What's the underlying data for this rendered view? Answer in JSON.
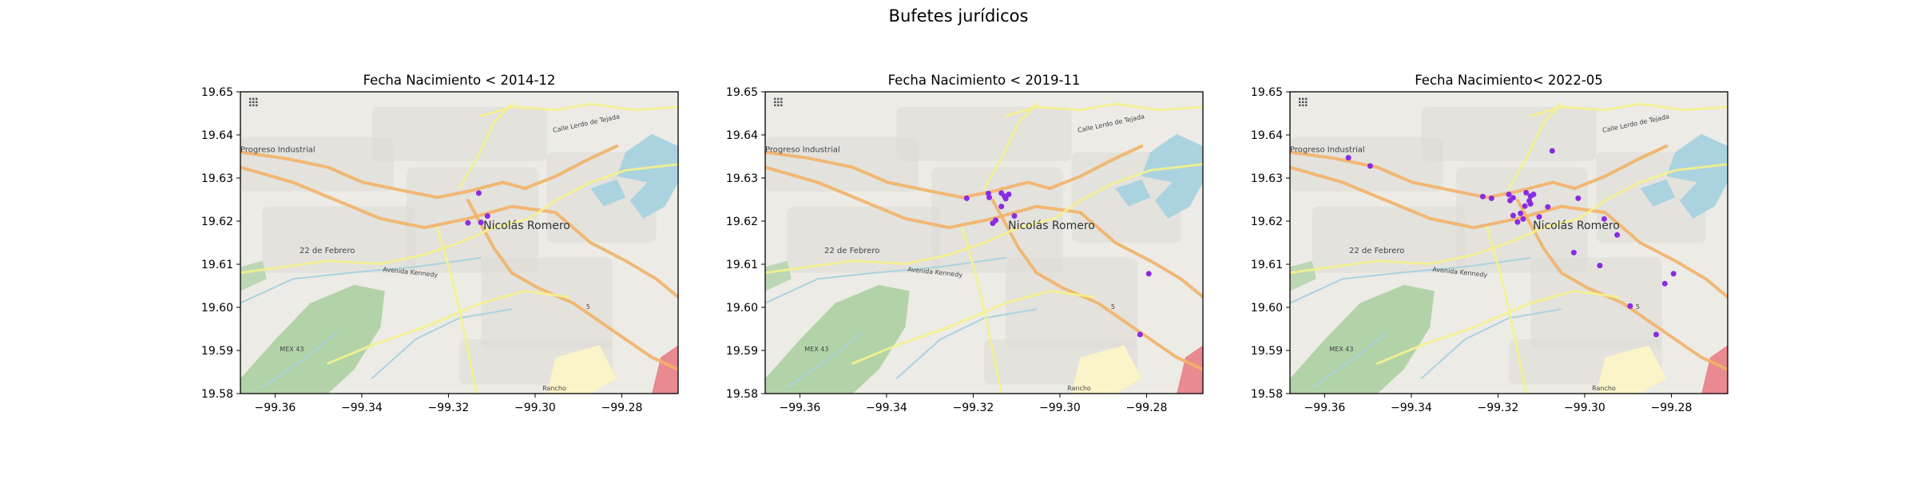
{
  "figure": {
    "suptitle": "Bufetes jurídicos"
  },
  "map_labels": {
    "town": "Nicolás Romero",
    "progreso": "Progreso Industrial",
    "febrero": "22 de Febrero",
    "kennedy": "Avenida Kennedy",
    "mex43": "MEX 43",
    "rancho": "Rancho",
    "lerdo": "Calle Lerdo de Tejada",
    "route5": "5"
  },
  "colors": {
    "point": "#8a2be2",
    "map_bg": "#ecebe6",
    "water": "#aad3df",
    "forest": "#a8cf9c",
    "road_major": "#f2b368",
    "road_secondary": "#f4f28c"
  },
  "chart_data": [
    {
      "type": "scatter",
      "title": "Fecha Nacimiento < 2014-12",
      "xlabel": "",
      "ylabel": "",
      "xlim": [
        -99.368,
        -99.267
      ],
      "ylim": [
        19.58,
        19.65
      ],
      "xticks": [
        "−99.36",
        "−99.34",
        "−99.32",
        "−99.30",
        "−99.28"
      ],
      "yticks": [
        "19.65",
        "19.64",
        "19.63",
        "19.62",
        "19.61",
        "19.60",
        "19.59",
        "19.58"
      ],
      "points": [
        {
          "x": -99.313,
          "y": 19.6265
        },
        {
          "x": -99.3155,
          "y": 19.6196
        },
        {
          "x": -99.311,
          "y": 19.6212
        },
        {
          "x": -99.3125,
          "y": 19.6197
        }
      ]
    },
    {
      "type": "scatter",
      "title": "Fecha Nacimiento < 2019-11",
      "xlabel": "",
      "ylabel": "",
      "xlim": [
        -99.368,
        -99.267
      ],
      "ylim": [
        19.58,
        19.65
      ],
      "xticks": [
        "−99.36",
        "−99.34",
        "−99.32",
        "−99.30",
        "−99.28"
      ],
      "yticks": [
        "19.65",
        "19.64",
        "19.63",
        "19.62",
        "19.61",
        "19.60",
        "19.59",
        "19.58"
      ],
      "points": [
        {
          "x": -99.3215,
          "y": 19.6253
        },
        {
          "x": -99.3165,
          "y": 19.6264
        },
        {
          "x": -99.3163,
          "y": 19.6255
        },
        {
          "x": -99.3135,
          "y": 19.6265
        },
        {
          "x": -99.3128,
          "y": 19.6258
        },
        {
          "x": -99.3118,
          "y": 19.6262
        },
        {
          "x": -99.3125,
          "y": 19.6252
        },
        {
          "x": -99.3135,
          "y": 19.6234
        },
        {
          "x": -99.3105,
          "y": 19.6212
        },
        {
          "x": -99.3155,
          "y": 19.6195
        },
        {
          "x": -99.3148,
          "y": 19.6202
        },
        {
          "x": -99.2795,
          "y": 19.6078
        },
        {
          "x": -99.2815,
          "y": 19.5937
        }
      ]
    },
    {
      "type": "scatter",
      "title": "Fecha Nacimiento< 2022-05",
      "xlabel": "",
      "ylabel": "",
      "xlim": [
        -99.368,
        -99.267
      ],
      "ylim": [
        19.58,
        19.65
      ],
      "xticks": [
        "−99.36",
        "−99.34",
        "−99.32",
        "−99.30",
        "−99.28"
      ],
      "yticks": [
        "19.65",
        "19.64",
        "19.63",
        "19.62",
        "19.61",
        "19.60",
        "19.59",
        "19.58"
      ],
      "points": [
        {
          "x": -99.3545,
          "y": 19.6347
        },
        {
          "x": -99.3495,
          "y": 19.6328
        },
        {
          "x": -99.3075,
          "y": 19.6363
        },
        {
          "x": -99.3235,
          "y": 19.6257
        },
        {
          "x": -99.3215,
          "y": 19.6253
        },
        {
          "x": -99.3175,
          "y": 19.6262
        },
        {
          "x": -99.3165,
          "y": 19.6254
        },
        {
          "x": -99.3172,
          "y": 19.6248
        },
        {
          "x": -99.3135,
          "y": 19.6266
        },
        {
          "x": -99.3125,
          "y": 19.6258
        },
        {
          "x": -99.3118,
          "y": 19.6262
        },
        {
          "x": -99.3128,
          "y": 19.6247
        },
        {
          "x": -99.3138,
          "y": 19.6235
        },
        {
          "x": -99.3125,
          "y": 19.624
        },
        {
          "x": -99.3085,
          "y": 19.6233
        },
        {
          "x": -99.3165,
          "y": 19.6213
        },
        {
          "x": -99.3148,
          "y": 19.6218
        },
        {
          "x": -99.3155,
          "y": 19.6198
        },
        {
          "x": -99.3142,
          "y": 19.6205
        },
        {
          "x": -99.3105,
          "y": 19.621
        },
        {
          "x": -99.3015,
          "y": 19.6253
        },
        {
          "x": -99.2955,
          "y": 19.6205
        },
        {
          "x": -99.2925,
          "y": 19.6168
        },
        {
          "x": -99.3025,
          "y": 19.6127
        },
        {
          "x": -99.2965,
          "y": 19.6097
        },
        {
          "x": -99.2895,
          "y": 19.6003
        },
        {
          "x": -99.2815,
          "y": 19.6055
        },
        {
          "x": -99.2795,
          "y": 19.6078
        },
        {
          "x": -99.2835,
          "y": 19.5937
        }
      ]
    }
  ]
}
